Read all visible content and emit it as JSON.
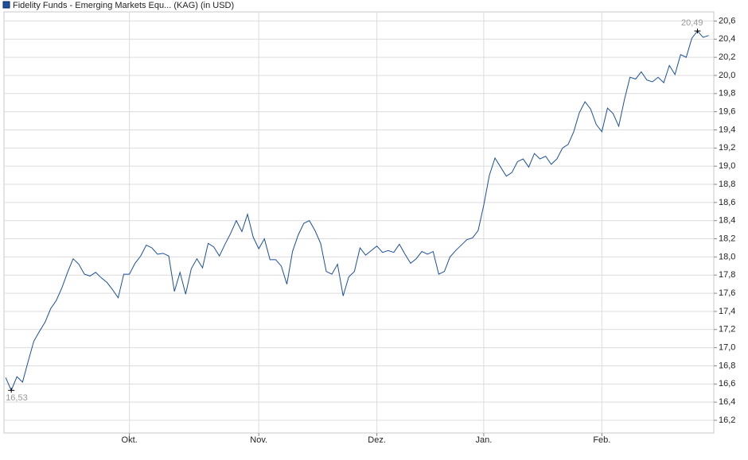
{
  "chart_data": {
    "type": "line",
    "series": [
      {
        "name": "Fidelity Funds - Emerging Markets Equ... (KAG) (in USD)",
        "color": "#1c4f9c",
        "values": [
          16.67,
          16.53,
          16.68,
          16.62,
          16.85,
          17.07,
          17.18,
          17.28,
          17.43,
          17.52,
          17.66,
          17.83,
          17.98,
          17.92,
          17.81,
          17.79,
          17.83,
          17.77,
          17.72,
          17.64,
          17.55,
          17.81,
          17.81,
          17.93,
          18.01,
          18.13,
          18.1,
          18.03,
          18.04,
          18.01,
          17.62,
          17.83,
          17.59,
          17.87,
          17.98,
          17.88,
          18.15,
          18.11,
          18.01,
          18.14,
          18.26,
          18.4,
          18.28,
          18.47,
          18.22,
          18.09,
          18.2,
          17.97,
          17.97,
          17.9,
          17.7,
          18.06,
          18.24,
          18.37,
          18.4,
          18.29,
          18.15,
          17.84,
          17.81,
          17.92,
          17.57,
          17.78,
          17.84,
          18.1,
          18.02,
          18.07,
          18.12,
          18.05,
          18.07,
          18.05,
          18.14,
          18.03,
          17.93,
          17.98,
          18.06,
          18.03,
          18.06,
          17.81,
          17.84,
          18.0,
          18.07,
          18.13,
          18.19,
          18.21,
          18.29,
          18.57,
          18.9,
          19.09,
          18.99,
          18.89,
          18.93,
          19.05,
          19.08,
          18.99,
          19.14,
          19.08,
          19.11,
          19.02,
          19.08,
          19.2,
          19.24,
          19.38,
          19.59,
          19.71,
          19.63,
          19.46,
          19.38,
          19.64,
          19.58,
          19.44,
          19.73,
          19.98,
          19.96,
          20.04,
          19.95,
          19.93,
          19.98,
          19.92,
          20.11,
          20.01,
          20.23,
          20.2,
          20.41,
          20.49,
          20.42,
          20.44
        ]
      }
    ],
    "annotations": [
      {
        "x": 1,
        "value": 16.53,
        "label": "16,53"
      },
      {
        "x": 123,
        "value": 20.49,
        "label": "20,49"
      }
    ],
    "xlim": [
      -0.3,
      125.9
    ],
    "xticks": [
      {
        "value": 22,
        "label": "Okt."
      },
      {
        "value": 45,
        "label": "Nov."
      },
      {
        "value": 66,
        "label": "Dez."
      },
      {
        "value": 85,
        "label": "Jan."
      },
      {
        "value": 106,
        "label": "Feb."
      }
    ],
    "ylim": [
      16.06,
      20.7
    ],
    "yticks": [
      {
        "value": 16.2,
        "label": "16,2"
      },
      {
        "value": 16.4,
        "label": "16,4"
      },
      {
        "value": 16.6,
        "label": "16,6"
      },
      {
        "value": 16.8,
        "label": "16,8"
      },
      {
        "value": 17.0,
        "label": "17,0"
      },
      {
        "value": 17.2,
        "label": "17,2"
      },
      {
        "value": 17.4,
        "label": "17,4"
      },
      {
        "value": 17.6,
        "label": "17,6"
      },
      {
        "value": 17.8,
        "label": "17,8"
      },
      {
        "value": 18.0,
        "label": "18,0"
      },
      {
        "value": 18.2,
        "label": "18,2"
      },
      {
        "value": 18.4,
        "label": "18,4"
      },
      {
        "value": 18.6,
        "label": "18,6"
      },
      {
        "value": 18.8,
        "label": "18,8"
      },
      {
        "value": 19.0,
        "label": "19,0"
      },
      {
        "value": 19.2,
        "label": "19,2"
      },
      {
        "value": 19.4,
        "label": "19,4"
      },
      {
        "value": 19.6,
        "label": "19,6"
      },
      {
        "value": 19.8,
        "label": "19,8"
      },
      {
        "value": 20.0,
        "label": "20,0"
      },
      {
        "value": 20.2,
        "label": "20,2"
      },
      {
        "value": 20.4,
        "label": "20,4"
      },
      {
        "value": 20.6,
        "label": "20,6"
      }
    ],
    "grid": true
  }
}
